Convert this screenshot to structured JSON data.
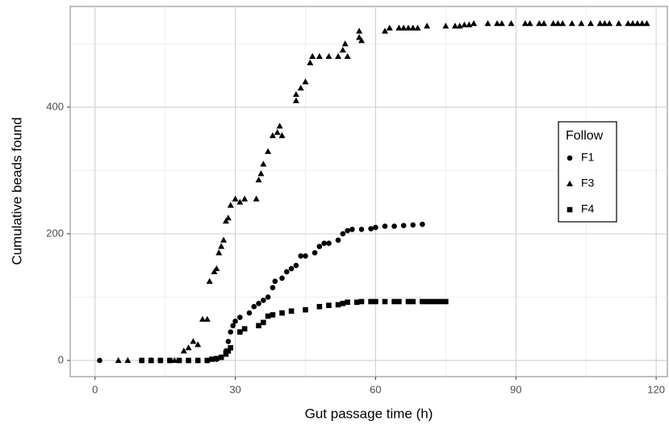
{
  "chart_data": {
    "type": "scatter",
    "x_label": "Gut passage time (h)",
    "y_label": "Cumulative beads found",
    "xlim": [
      -5.3,
      122.4
    ],
    "ylim": [
      -25.5,
      559
    ],
    "xticks": [
      0,
      30,
      60,
      90,
      120
    ],
    "yticks": [
      0,
      200,
      400
    ],
    "minor_xticks": [
      15,
      45,
      75,
      105
    ],
    "minor_yticks": [
      100,
      300,
      500
    ],
    "grid": true,
    "legend_title": "Follow",
    "legend_position": "right",
    "series": [
      {
        "name": "F1",
        "color": "#000000",
        "marker": "circle",
        "x": [
          1,
          10,
          12,
          14,
          16,
          18,
          20,
          22,
          24,
          26,
          27,
          28,
          28.5,
          29,
          29.5,
          30,
          31,
          33,
          34,
          35,
          36,
          37,
          38,
          38.5,
          40,
          41,
          42,
          43,
          44,
          45,
          47,
          48,
          49,
          50,
          52,
          53,
          54,
          55,
          57,
          59,
          60,
          62,
          64,
          66,
          68,
          70
        ],
        "values": [
          0,
          0,
          0,
          0,
          0,
          0,
          0,
          0,
          0,
          2,
          5,
          15,
          30,
          45,
          55,
          62,
          68,
          75,
          85,
          90,
          95,
          100,
          115,
          125,
          130,
          140,
          145,
          150,
          165,
          165,
          170,
          180,
          185,
          185,
          190,
          200,
          205,
          207,
          207,
          208,
          210,
          212,
          212,
          213,
          214,
          215
        ]
      },
      {
        "name": "F3",
        "color": "#000000",
        "marker": "triangle",
        "x": [
          5,
          7,
          12,
          17,
          19,
          20,
          21,
          22,
          23,
          24,
          24.5,
          25.5,
          26,
          26.5,
          27,
          27.5,
          28,
          28.5,
          29,
          30,
          31,
          32,
          34.5,
          35,
          35.5,
          36,
          37,
          38,
          39,
          39.5,
          40,
          43,
          43,
          44,
          45,
          46,
          46.5,
          48,
          50,
          52,
          53,
          53.5,
          54,
          56.5,
          56.5,
          57,
          62,
          63,
          65,
          66,
          67,
          68,
          69,
          71,
          75,
          77,
          78,
          79,
          80,
          81,
          84,
          86,
          87,
          89,
          92,
          93,
          95,
          96,
          98,
          99,
          100,
          102,
          104,
          106,
          108,
          109,
          110,
          112,
          114,
          115,
          116,
          117,
          118
        ],
        "values": [
          0,
          0,
          0,
          0,
          15,
          20,
          30,
          25,
          65,
          65,
          125,
          140,
          145,
          170,
          180,
          190,
          220,
          225,
          245,
          255,
          250,
          255,
          255,
          285,
          295,
          310,
          330,
          355,
          360,
          370,
          355,
          410,
          420,
          430,
          440,
          470,
          480,
          480,
          480,
          480,
          490,
          500,
          480,
          510,
          520,
          505,
          520,
          525,
          525,
          525,
          525,
          525,
          525,
          528,
          528,
          528,
          528,
          530,
          530,
          532,
          532,
          532,
          532,
          532,
          532,
          532,
          532,
          532,
          532,
          532,
          532,
          532,
          532,
          532,
          532,
          532,
          532,
          532,
          532,
          532,
          532,
          532,
          532
        ]
      },
      {
        "name": "F4",
        "color": "#000000",
        "marker": "square",
        "x": [
          10,
          12,
          14,
          16,
          18,
          20,
          22,
          24,
          25,
          26,
          27,
          28,
          28.5,
          29,
          31,
          32,
          35,
          36,
          37,
          38,
          40,
          42,
          45,
          48,
          50,
          52,
          53,
          54,
          56,
          57,
          59,
          60,
          62,
          64,
          65,
          67,
          68,
          70,
          71,
          72,
          73,
          74,
          75
        ],
        "values": [
          0,
          0,
          0,
          0,
          0,
          0,
          0,
          0,
          2,
          3,
          5,
          10,
          15,
          20,
          45,
          50,
          55,
          60,
          70,
          72,
          75,
          78,
          80,
          85,
          87,
          88,
          90,
          92,
          92,
          93,
          93,
          93,
          93,
          93,
          93,
          93,
          93,
          93,
          93,
          93,
          93,
          93,
          93
        ]
      }
    ]
  }
}
